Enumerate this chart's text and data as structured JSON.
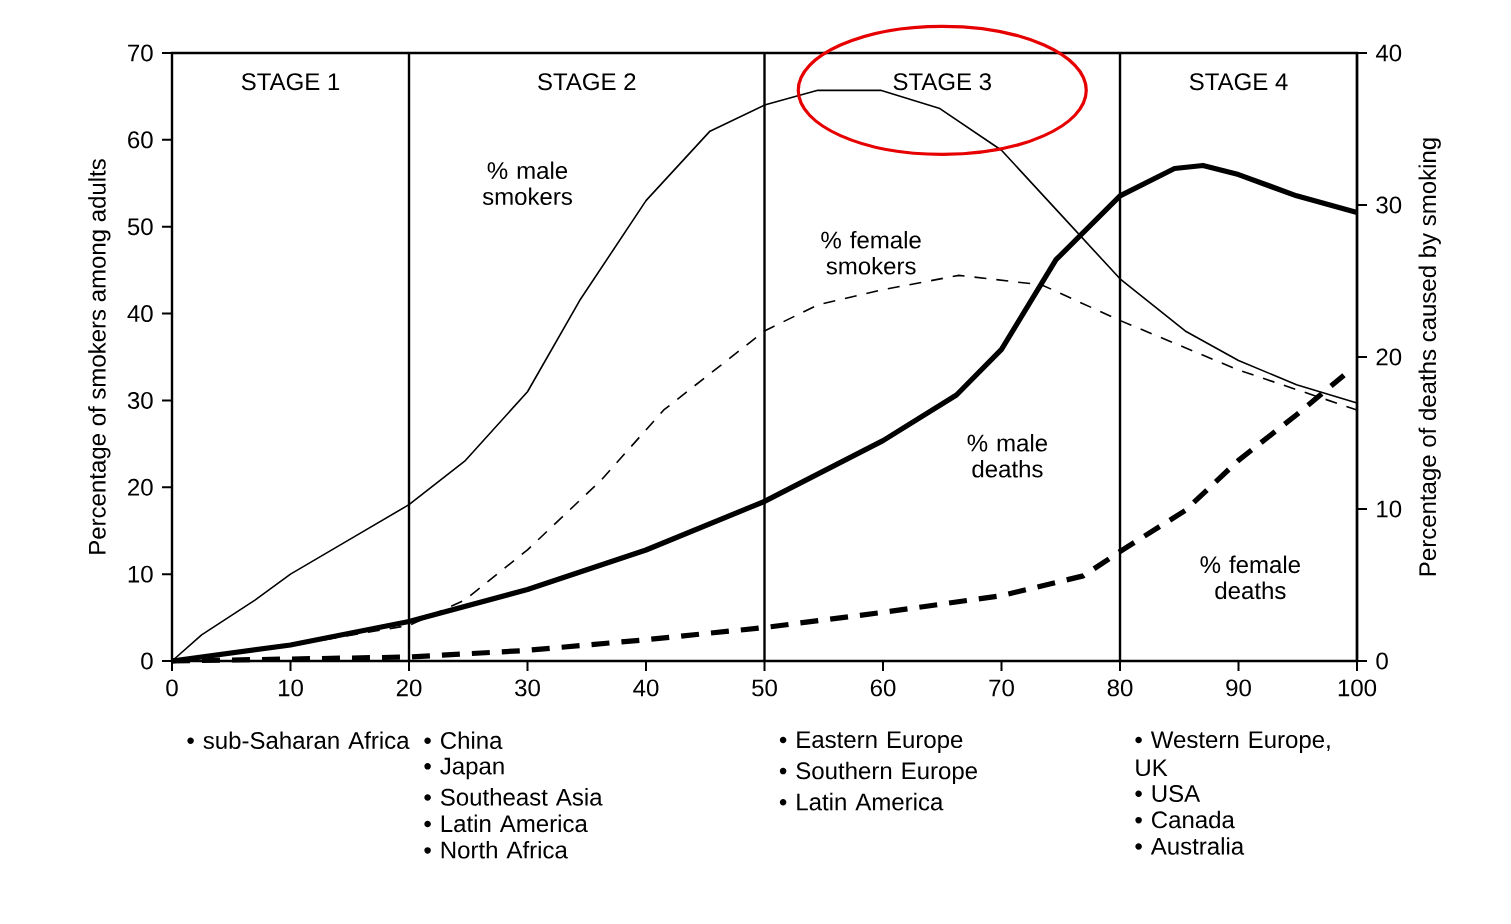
{
  "chart_data": {
    "type": "line",
    "xlim": [
      0,
      100
    ],
    "xticks": [
      0,
      10,
      20,
      30,
      40,
      50,
      60,
      70,
      80,
      90,
      100
    ],
    "ylim": [
      0,
      70
    ],
    "yticks": [
      0,
      10,
      20,
      30,
      40,
      50,
      60,
      70
    ],
    "y2lim": [
      0,
      40
    ],
    "y2ticks": [
      0,
      10,
      20,
      30,
      40
    ],
    "ylabel": "Percentage of smokers among adults",
    "y2label": "Percentage of deaths caused by smoking",
    "series": [
      {
        "name": "% male smokers",
        "color": "#000000",
        "line_style": "solid",
        "x": [
          0,
          2.5,
          7,
          10,
          15,
          20,
          24.7,
          30,
          34.4,
          40,
          45.4,
          50,
          54.5,
          59.8,
          64.8,
          70,
          74.6,
          80,
          85.5,
          90,
          94.9,
          100
        ],
        "values": [
          0,
          3,
          7,
          10,
          14,
          18,
          23,
          31,
          41.5,
          53,
          61,
          64,
          65.7,
          65.7,
          63.6,
          58.8,
          52,
          44,
          38,
          34.6,
          31.8,
          29.7
        ]
      },
      {
        "name": "% female smokers",
        "color": "#000000",
        "line_style": "dashed",
        "x": [
          0,
          10,
          20,
          24.7,
          30,
          36.2,
          41.5,
          50,
          54.5,
          59.8,
          66.4,
          73.4,
          80,
          90,
          100
        ],
        "values": [
          0,
          1.8,
          4.1,
          7,
          12.8,
          20.8,
          28.9,
          38,
          41,
          42.7,
          44.4,
          43.3,
          39.2,
          33.5,
          28.9
        ]
      },
      {
        "name": "% male deaths",
        "color": "#000000",
        "line_style": "solid",
        "axis": "y2",
        "x": [
          0,
          10,
          20,
          30,
          40,
          50,
          60,
          66.2,
          70,
          74.6,
          80,
          84.6,
          87,
          90,
          94.9,
          100
        ],
        "values": [
          0,
          1.05,
          2.6,
          4.7,
          7.3,
          10.5,
          14.5,
          17.5,
          20.5,
          26.4,
          30.6,
          32.4,
          32.6,
          32,
          30.6,
          29.5
        ]
      },
      {
        "name": "% female deaths",
        "color": "#000000",
        "line_style": "dashed",
        "axis": "y2",
        "x": [
          0,
          20,
          30,
          40,
          50,
          60,
          70,
          76.9,
          80,
          85.5,
          90,
          94.9,
          98.9
        ],
        "values": [
          0,
          0.26,
          0.7,
          1.4,
          2.2,
          3.2,
          4.3,
          5.6,
          7.2,
          9.9,
          13.2,
          16.2,
          18.8
        ]
      }
    ],
    "ref_lines": [
      {
        "axis": "x",
        "value": 20
      },
      {
        "axis": "x",
        "value": 50
      },
      {
        "axis": "x",
        "value": 80
      }
    ],
    "annotations": [
      "STAGE 1",
      "STAGE 2",
      "STAGE 3",
      "STAGE 4",
      "• sub-Saharan Africa",
      "• China",
      "• Japan",
      "• Southeast Asia",
      "• Latin America",
      "• North Africa",
      "• Eastern Europe",
      "• Southern Europe",
      "• Latin America",
      "• Western Europe, UK",
      "• USA",
      "• Canada",
      "• Australia"
    ]
  }
}
